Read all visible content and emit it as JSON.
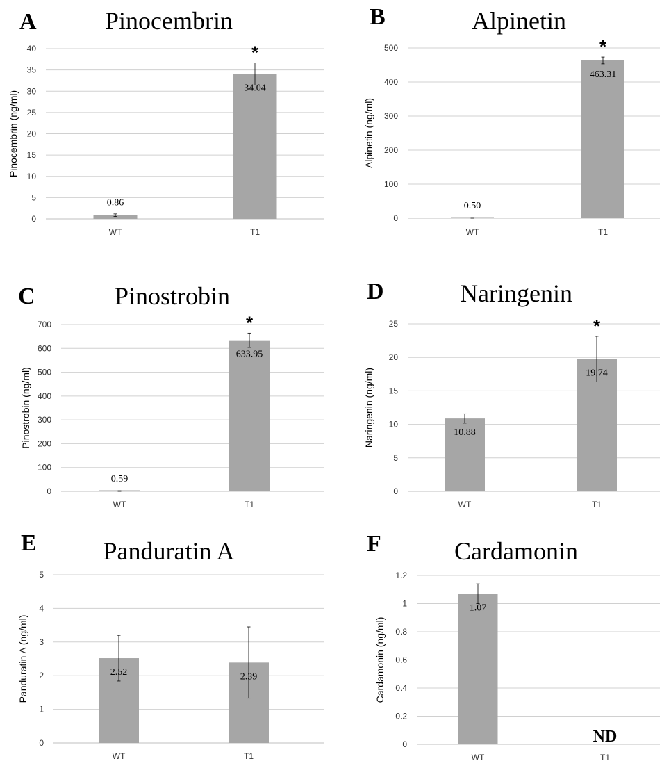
{
  "colors": {
    "bar": "#a6a6a6",
    "grid": "#d0d0d0",
    "error_bar": "#000000",
    "axis": "#bfbfbf"
  },
  "chart_data": [
    {
      "type": "bar",
      "panel": "A",
      "title": "Pinocembrin",
      "ylabel": "Pinocembrin (ng/ml)",
      "categories": [
        "WT",
        "T1"
      ],
      "values": [
        0.86,
        34.04
      ],
      "errors": [
        0.3,
        2.6
      ],
      "value_labels": [
        "0.86",
        "34.04"
      ],
      "significant": [
        false,
        true
      ],
      "significance_marker": "*",
      "ylim": [
        0,
        40
      ],
      "yticks": [
        "0",
        "5",
        "10",
        "15",
        "20",
        "25",
        "30",
        "35",
        "40"
      ],
      "grid": true
    },
    {
      "type": "bar",
      "panel": "B",
      "title": "Alpinetin",
      "ylabel": "Alpinetin (ng/ml)",
      "categories": [
        "WT",
        "T1"
      ],
      "values": [
        0.5,
        463.31
      ],
      "errors": [
        1.5,
        10
      ],
      "value_labels": [
        "0.50",
        "463.31"
      ],
      "significant": [
        false,
        true
      ],
      "significance_marker": "*",
      "ylim": [
        0,
        500
      ],
      "yticks": [
        "0",
        "100",
        "200",
        "300",
        "400",
        "500"
      ],
      "grid": true
    },
    {
      "type": "bar",
      "panel": "C",
      "title": "Pinostrobin",
      "ylabel": "Pinostrobin (ng/ml)",
      "categories": [
        "WT",
        "T1"
      ],
      "values": [
        0.59,
        633.95
      ],
      "errors": [
        2,
        30
      ],
      "value_labels": [
        "0.59",
        "633.95"
      ],
      "significant": [
        false,
        true
      ],
      "significance_marker": "*",
      "ylim": [
        0,
        700
      ],
      "yticks": [
        "0",
        "100",
        "200",
        "300",
        "400",
        "500",
        "600",
        "700"
      ],
      "grid": true
    },
    {
      "type": "bar",
      "panel": "D",
      "title": "Naringenin",
      "ylabel": "Naringenin (ng/ml)",
      "categories": [
        "WT",
        "T1"
      ],
      "values": [
        10.88,
        19.74
      ],
      "errors": [
        0.7,
        3.4
      ],
      "value_labels": [
        "10.88",
        "19.74"
      ],
      "significant": [
        false,
        true
      ],
      "significance_marker": "*",
      "ylim": [
        0,
        25
      ],
      "yticks": [
        "0",
        "5",
        "10",
        "15",
        "20",
        "25"
      ],
      "grid": true
    },
    {
      "type": "bar",
      "panel": "E",
      "title": "Panduratin A",
      "ylabel": "Panduratin A (ng/ml)",
      "categories": [
        "WT",
        "T1"
      ],
      "values": [
        2.52,
        2.39
      ],
      "errors": [
        0.68,
        1.06
      ],
      "value_labels": [
        "2.52",
        "2.39"
      ],
      "significant": [
        false,
        false
      ],
      "significance_marker": "*",
      "ylim": [
        0,
        5
      ],
      "yticks": [
        "0",
        "1",
        "2",
        "3",
        "4",
        "5"
      ],
      "grid": true
    },
    {
      "type": "bar",
      "panel": "F",
      "title": "Cardamonin",
      "ylabel": "Cardamonin (ng/ml)",
      "categories": [
        "WT",
        "T1"
      ],
      "values": [
        1.07,
        null
      ],
      "errors": [
        0.07,
        null
      ],
      "value_labels": [
        "1.07",
        "ND"
      ],
      "significant": [
        false,
        false
      ],
      "significance_marker": "*",
      "ylim": [
        0,
        1.2
      ],
      "yticks": [
        "0",
        "0.2",
        "0.4",
        "0.6",
        "0.8",
        "1",
        "1.2"
      ],
      "grid": true
    }
  ]
}
